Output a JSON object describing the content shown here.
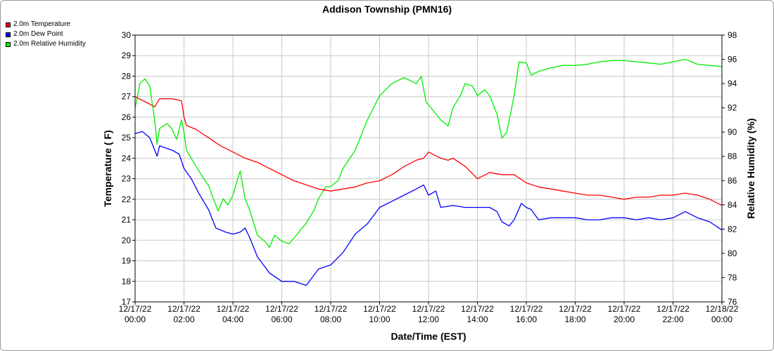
{
  "chart_data": {
    "type": "line",
    "title": "Addison Township (PMN16)",
    "xlabel": "Date/Time (EST)",
    "ylabel_left": "Temperature ( F)",
    "ylabel_right": "Relative Humidity (%)",
    "ylim_left": [
      17,
      30
    ],
    "ylim_right": [
      76,
      98
    ],
    "grid": true,
    "legend_placement": "top-left outside",
    "x_ticks": [
      {
        "hour": 0,
        "date": "12/17/22",
        "time": "00:00"
      },
      {
        "hour": 2,
        "date": "12/17/22",
        "time": "02:00"
      },
      {
        "hour": 4,
        "date": "12/17/22",
        "time": "04:00"
      },
      {
        "hour": 6,
        "date": "12/17/22",
        "time": "06:00"
      },
      {
        "hour": 8,
        "date": "12/17/22",
        "time": "08:00"
      },
      {
        "hour": 10,
        "date": "12/17/22",
        "time": "10:00"
      },
      {
        "hour": 12,
        "date": "12/17/22",
        "time": "12:00"
      },
      {
        "hour": 14,
        "date": "12/17/22",
        "time": "14:00"
      },
      {
        "hour": 16,
        "date": "12/17/22",
        "time": "16:00"
      },
      {
        "hour": 18,
        "date": "12/17/22",
        "time": "18:00"
      },
      {
        "hour": 20,
        "date": "12/17/22",
        "time": "20:00"
      },
      {
        "hour": 22,
        "date": "12/17/22",
        "time": "22:00"
      },
      {
        "hour": 24,
        "date": "12/18/22",
        "time": "00:00"
      }
    ],
    "y_ticks_left": [
      17,
      18,
      19,
      20,
      21,
      22,
      23,
      24,
      25,
      26,
      27,
      28,
      29,
      30
    ],
    "y_ticks_right": [
      76,
      78,
      80,
      82,
      84,
      86,
      88,
      90,
      92,
      94,
      96,
      98
    ],
    "series": [
      {
        "name": "2.0m Temperature",
        "color": "#ff0000",
        "axis": "left",
        "x": [
          0,
          0.5,
          0.8,
          1.0,
          1.5,
          1.9,
          2.0,
          2.1,
          2.5,
          3.0,
          3.5,
          4.0,
          4.5,
          5.0,
          5.5,
          6.0,
          6.5,
          7.0,
          7.5,
          8.0,
          8.5,
          9.0,
          9.5,
          10.0,
          10.5,
          11.0,
          11.5,
          11.8,
          12.0,
          12.5,
          12.8,
          13.0,
          13.5,
          14.0,
          14.5,
          15.0,
          15.5,
          16.0,
          16.5,
          17.0,
          17.5,
          18.0,
          18.5,
          19.0,
          19.5,
          20.0,
          20.5,
          21.0,
          21.5,
          22.0,
          22.5,
          23.0,
          23.5,
          24.0
        ],
        "values": [
          27.0,
          26.7,
          26.5,
          26.9,
          26.9,
          26.8,
          26.0,
          25.6,
          25.4,
          25.0,
          24.6,
          24.3,
          24.0,
          23.8,
          23.5,
          23.2,
          22.9,
          22.7,
          22.5,
          22.4,
          22.5,
          22.6,
          22.8,
          22.9,
          23.2,
          23.6,
          23.9,
          24.0,
          24.3,
          24.0,
          23.9,
          24.0,
          23.6,
          23.0,
          23.3,
          23.2,
          23.2,
          22.8,
          22.6,
          22.5,
          22.4,
          22.3,
          22.2,
          22.2,
          22.1,
          22.0,
          22.1,
          22.1,
          22.2,
          22.2,
          22.3,
          22.2,
          22.0,
          21.7
        ]
      },
      {
        "name": "2.0m Dew Point",
        "color": "#0000ff",
        "axis": "left",
        "x": [
          0,
          0.3,
          0.6,
          0.8,
          0.9,
          1.0,
          1.5,
          1.8,
          2.0,
          2.3,
          2.6,
          3.0,
          3.3,
          3.7,
          4.0,
          4.3,
          4.5,
          4.7,
          5.0,
          5.5,
          6.0,
          6.5,
          7.0,
          7.5,
          8.0,
          8.5,
          9.0,
          9.5,
          10.0,
          10.5,
          11.0,
          11.5,
          11.8,
          12.0,
          12.3,
          12.5,
          13.0,
          13.5,
          14.0,
          14.5,
          14.8,
          15.0,
          15.3,
          15.5,
          15.8,
          16.0,
          16.2,
          16.5,
          17.0,
          17.5,
          18.0,
          18.5,
          19.0,
          19.5,
          20.0,
          20.5,
          21.0,
          21.5,
          22.0,
          22.5,
          23.0,
          23.5,
          24.0
        ],
        "values": [
          25.2,
          25.3,
          25.0,
          24.4,
          24.1,
          24.6,
          24.4,
          24.2,
          23.5,
          23.0,
          22.3,
          21.5,
          20.6,
          20.4,
          20.3,
          20.4,
          20.6,
          20.1,
          19.2,
          18.4,
          18.0,
          18.0,
          17.8,
          18.6,
          18.8,
          19.4,
          20.3,
          20.8,
          21.6,
          21.9,
          22.2,
          22.5,
          22.7,
          22.2,
          22.4,
          21.6,
          21.7,
          21.6,
          21.6,
          21.6,
          21.4,
          20.9,
          20.7,
          21.0,
          21.8,
          21.6,
          21.5,
          21.0,
          21.1,
          21.1,
          21.1,
          21.0,
          21.0,
          21.1,
          21.1,
          21.0,
          21.1,
          21.0,
          21.1,
          21.4,
          21.1,
          20.9,
          20.5
        ]
      },
      {
        "name": "2.0m Relative Humidity",
        "color": "#00ee00",
        "axis": "right",
        "x": [
          0,
          0.2,
          0.4,
          0.6,
          0.8,
          0.9,
          1.0,
          1.3,
          1.5,
          1.7,
          1.9,
          2.0,
          2.1,
          2.4,
          2.7,
          3.0,
          3.2,
          3.4,
          3.6,
          3.8,
          4.0,
          4.2,
          4.3,
          4.5,
          4.7,
          5.0,
          5.3,
          5.5,
          5.7,
          6.0,
          6.3,
          6.6,
          7.0,
          7.3,
          7.5,
          7.8,
          8.0,
          8.3,
          8.5,
          9.0,
          9.5,
          10.0,
          10.5,
          11.0,
          11.5,
          11.7,
          11.9,
          12.1,
          12.5,
          12.8,
          13.0,
          13.3,
          13.5,
          13.8,
          14.0,
          14.3,
          14.5,
          14.8,
          15.0,
          15.2,
          15.5,
          15.7,
          16.0,
          16.2,
          16.5,
          17.0,
          17.5,
          18.0,
          18.5,
          19.0,
          19.5,
          20.0,
          20.5,
          21.0,
          21.5,
          22.0,
          22.5,
          23.0,
          23.5,
          24.0
        ],
        "values": [
          92.0,
          94.0,
          94.4,
          93.8,
          91.0,
          89.0,
          90.3,
          90.7,
          90.3,
          89.4,
          91.0,
          90.0,
          88.5,
          87.5,
          86.5,
          85.6,
          84.5,
          83.5,
          84.5,
          84.0,
          84.8,
          86.2,
          86.8,
          84.5,
          83.5,
          81.5,
          81.0,
          80.5,
          81.5,
          81.0,
          80.8,
          81.5,
          82.5,
          83.5,
          84.5,
          85.5,
          85.5,
          86.0,
          87.0,
          88.5,
          91.0,
          93.0,
          94.0,
          94.5,
          94.0,
          94.6,
          92.5,
          92.0,
          91.0,
          90.5,
          92.0,
          93.0,
          94.0,
          93.8,
          93.0,
          93.5,
          93.0,
          91.5,
          89.5,
          90.0,
          93.0,
          95.8,
          95.7,
          94.7,
          95.0,
          95.3,
          95.5,
          95.5,
          95.6,
          95.8,
          95.9,
          95.9,
          95.8,
          95.7,
          95.6,
          95.8,
          96.0,
          95.6,
          95.5,
          95.4
        ]
      }
    ]
  }
}
